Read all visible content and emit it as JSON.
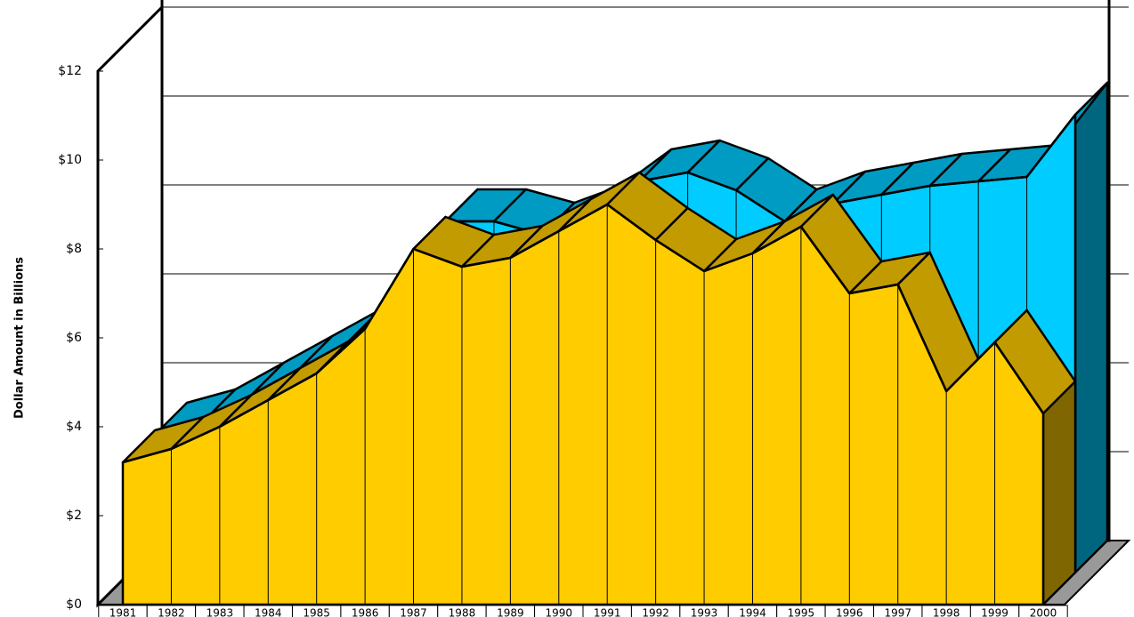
{
  "chart_data": {
    "type": "area3d",
    "y_label": "Dollar Amount in Billions",
    "categories": [
      "1981",
      "1982",
      "1983",
      "1984",
      "1985",
      "1986",
      "1987",
      "1988",
      "1989",
      "1990",
      "1991",
      "1992",
      "1993",
      "1994",
      "1995",
      "1996",
      "1997",
      "1998",
      "1999",
      "2000"
    ],
    "series": [
      {
        "color": "#ffcc00",
        "values": [
          3.2,
          3.5,
          4.0,
          4.6,
          5.2,
          6.2,
          8.0,
          7.6,
          7.8,
          8.4,
          9.0,
          8.2,
          7.5,
          7.9,
          8.5,
          7.0,
          7.2,
          4.8,
          5.9,
          4.3
        ]
      },
      {
        "color": "#00ccff",
        "values": [
          3.1,
          3.4,
          4.0,
          4.6,
          5.2,
          6.1,
          7.9,
          7.9,
          7.6,
          8.0,
          8.8,
          9.0,
          8.6,
          7.9,
          8.3,
          8.5,
          8.7,
          8.8,
          8.9,
          10.3
        ]
      }
    ],
    "ylim": [
      0,
      12
    ],
    "yticks": [
      {
        "value": 0,
        "label": "$0"
      },
      {
        "value": 2,
        "label": "$2"
      },
      {
        "value": 4,
        "label": "$4"
      },
      {
        "value": 6,
        "label": "$6"
      },
      {
        "value": 8,
        "label": "$8"
      },
      {
        "value": 10,
        "label": "$10"
      },
      {
        "value": 12,
        "label": "$12"
      }
    ],
    "grid": true
  }
}
